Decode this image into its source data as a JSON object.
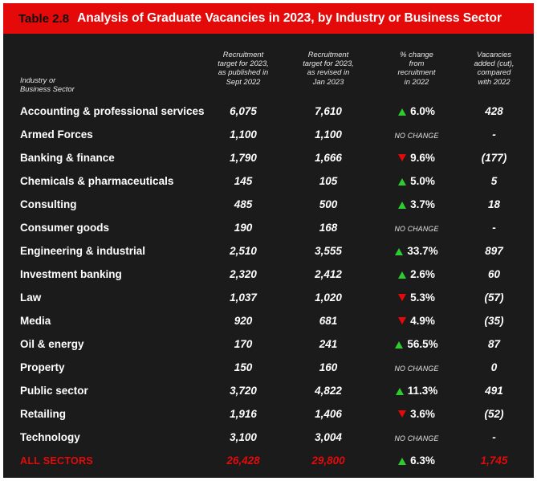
{
  "title": {
    "number": "Table 2.8",
    "text": "Analysis of Graduate Vacancies in 2023, by Industry or Business Sector"
  },
  "headers": {
    "sector": [
      "Industry or",
      "Business Sector"
    ],
    "published": [
      "Recruitment",
      "target for 2023,",
      "as published in",
      "Sept 2022"
    ],
    "revised": [
      "Recruitment",
      "target for 2023,",
      "as revised in",
      "Jan 2023"
    ],
    "change": [
      "% change",
      "from",
      "recruitment",
      "in 2022"
    ],
    "added": [
      "Vacancies",
      "added (cut),",
      "compared",
      "with 2022"
    ]
  },
  "rows": [
    {
      "sector": "Accounting & professional services",
      "published": "6,075",
      "revised": "7,610",
      "dir": "up",
      "change": "6.0%",
      "added": "428"
    },
    {
      "sector": "Armed Forces",
      "published": "1,100",
      "revised": "1,100",
      "dir": "none",
      "change": "NO CHANGE",
      "added": "-"
    },
    {
      "sector": "Banking & finance",
      "published": "1,790",
      "revised": "1,666",
      "dir": "down",
      "change": "9.6%",
      "added": "(177)"
    },
    {
      "sector": "Chemicals & pharmaceuticals",
      "published": "145",
      "revised": "105",
      "dir": "up",
      "change": "5.0%",
      "added": "5"
    },
    {
      "sector": "Consulting",
      "published": "485",
      "revised": "500",
      "dir": "up",
      "change": "3.7%",
      "added": "18"
    },
    {
      "sector": "Consumer goods",
      "published": "190",
      "revised": "168",
      "dir": "none",
      "change": "NO CHANGE",
      "added": "-"
    },
    {
      "sector": "Engineering & industrial",
      "published": "2,510",
      "revised": "3,555",
      "dir": "up",
      "change": "33.7%",
      "added": "897"
    },
    {
      "sector": "Investment banking",
      "published": "2,320",
      "revised": "2,412",
      "dir": "up",
      "change": "2.6%",
      "added": "60"
    },
    {
      "sector": "Law",
      "published": "1,037",
      "revised": "1,020",
      "dir": "down",
      "change": "5.3%",
      "added": "(57)"
    },
    {
      "sector": "Media",
      "published": "920",
      "revised": "681",
      "dir": "down",
      "change": "4.9%",
      "added": "(35)"
    },
    {
      "sector": "Oil & energy",
      "published": "170",
      "revised": "241",
      "dir": "up",
      "change": "56.5%",
      "added": "87"
    },
    {
      "sector": "Property",
      "published": "150",
      "revised": "160",
      "dir": "none",
      "change": "NO CHANGE",
      "added": "0"
    },
    {
      "sector": "Public sector",
      "published": "3,720",
      "revised": "4,822",
      "dir": "up",
      "change": "11.3%",
      "added": "491"
    },
    {
      "sector": "Retailing",
      "published": "1,916",
      "revised": "1,406",
      "dir": "down",
      "change": "3.6%",
      "added": "(52)"
    },
    {
      "sector": "Technology",
      "published": "3,100",
      "revised": "3,004",
      "dir": "none",
      "change": "NO CHANGE",
      "added": "-"
    }
  ],
  "total": {
    "sector": "ALL SECTORS",
    "published": "26,428",
    "revised": "29,800",
    "dir": "up",
    "change": "6.3%",
    "added": "1,745"
  },
  "colors": {
    "accent": "#e50a0a",
    "background": "#1b1b1b",
    "up": "#2ecc2e",
    "down": "#e50a0a",
    "text": "#ffffff"
  }
}
